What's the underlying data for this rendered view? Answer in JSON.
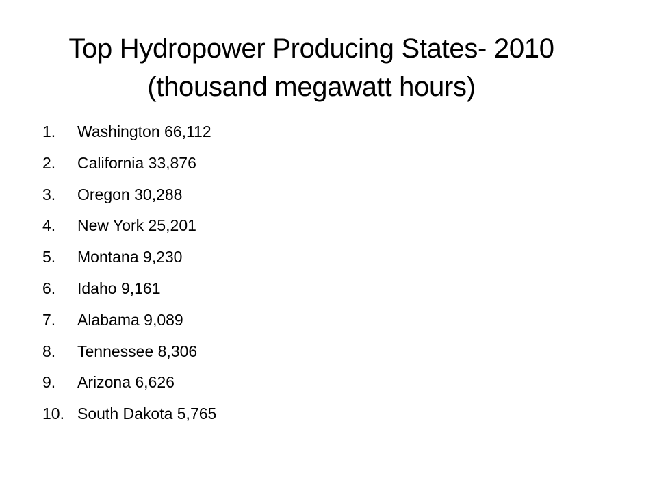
{
  "title": {
    "lines": [
      "Top Hydropower Producing States- 2010",
      "(thousand megawatt hours)"
    ]
  },
  "list": {
    "items": [
      {
        "marker": "1.",
        "text": "Washington 66,112"
      },
      {
        "marker": "2.",
        "text": "California 33,876"
      },
      {
        "marker": "3.",
        "text": "Oregon 30,288"
      },
      {
        "marker": "4.",
        "text": "New York 25,201"
      },
      {
        "marker": "5.",
        "text": "Montana 9,230"
      },
      {
        "marker": "6.",
        "text": "Idaho 9,161"
      },
      {
        "marker": "7.",
        "text": "Alabama 9,089"
      },
      {
        "marker": "8.",
        "text": "Tennessee 8,306"
      },
      {
        "marker": "9.",
        "text": "Arizona 6,626"
      },
      {
        "marker": "10.",
        "text": "South Dakota 5,765"
      }
    ]
  }
}
